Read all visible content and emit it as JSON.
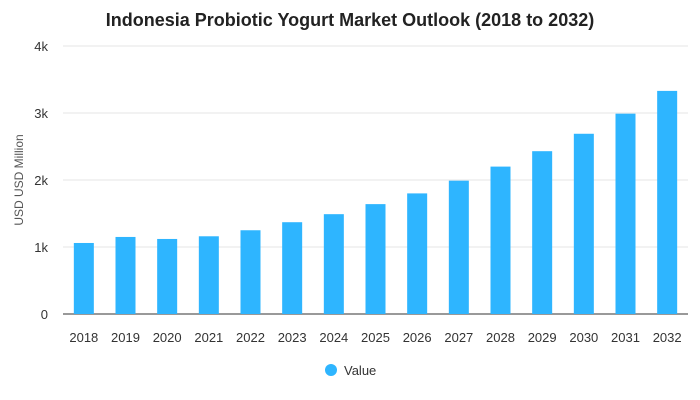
{
  "chart_data": {
    "type": "bar",
    "title": "Indonesia Probiotic Yogurt Market Outlook (2018 to 2032)",
    "ylabel": "USD USD Million",
    "xlabel": "",
    "categories": [
      "2018",
      "2019",
      "2020",
      "2021",
      "2022",
      "2023",
      "2024",
      "2025",
      "2026",
      "2027",
      "2028",
      "2029",
      "2030",
      "2031",
      "2032"
    ],
    "series": [
      {
        "name": "Value",
        "values": [
          1060,
          1150,
          1120,
          1160,
          1250,
          1370,
          1490,
          1640,
          1800,
          1990,
          2200,
          2430,
          2690,
          2990,
          3330
        ]
      }
    ],
    "ylim": [
      0,
      4000
    ],
    "yticks": [
      {
        "value": 0,
        "label": "0"
      },
      {
        "value": 1000,
        "label": "1k"
      },
      {
        "value": 2000,
        "label": "2k"
      },
      {
        "value": 3000,
        "label": "3k"
      },
      {
        "value": 4000,
        "label": "4k"
      }
    ],
    "grid": true,
    "legend_position": "bottom",
    "colors": {
      "bar": "#2eb5ff"
    }
  }
}
